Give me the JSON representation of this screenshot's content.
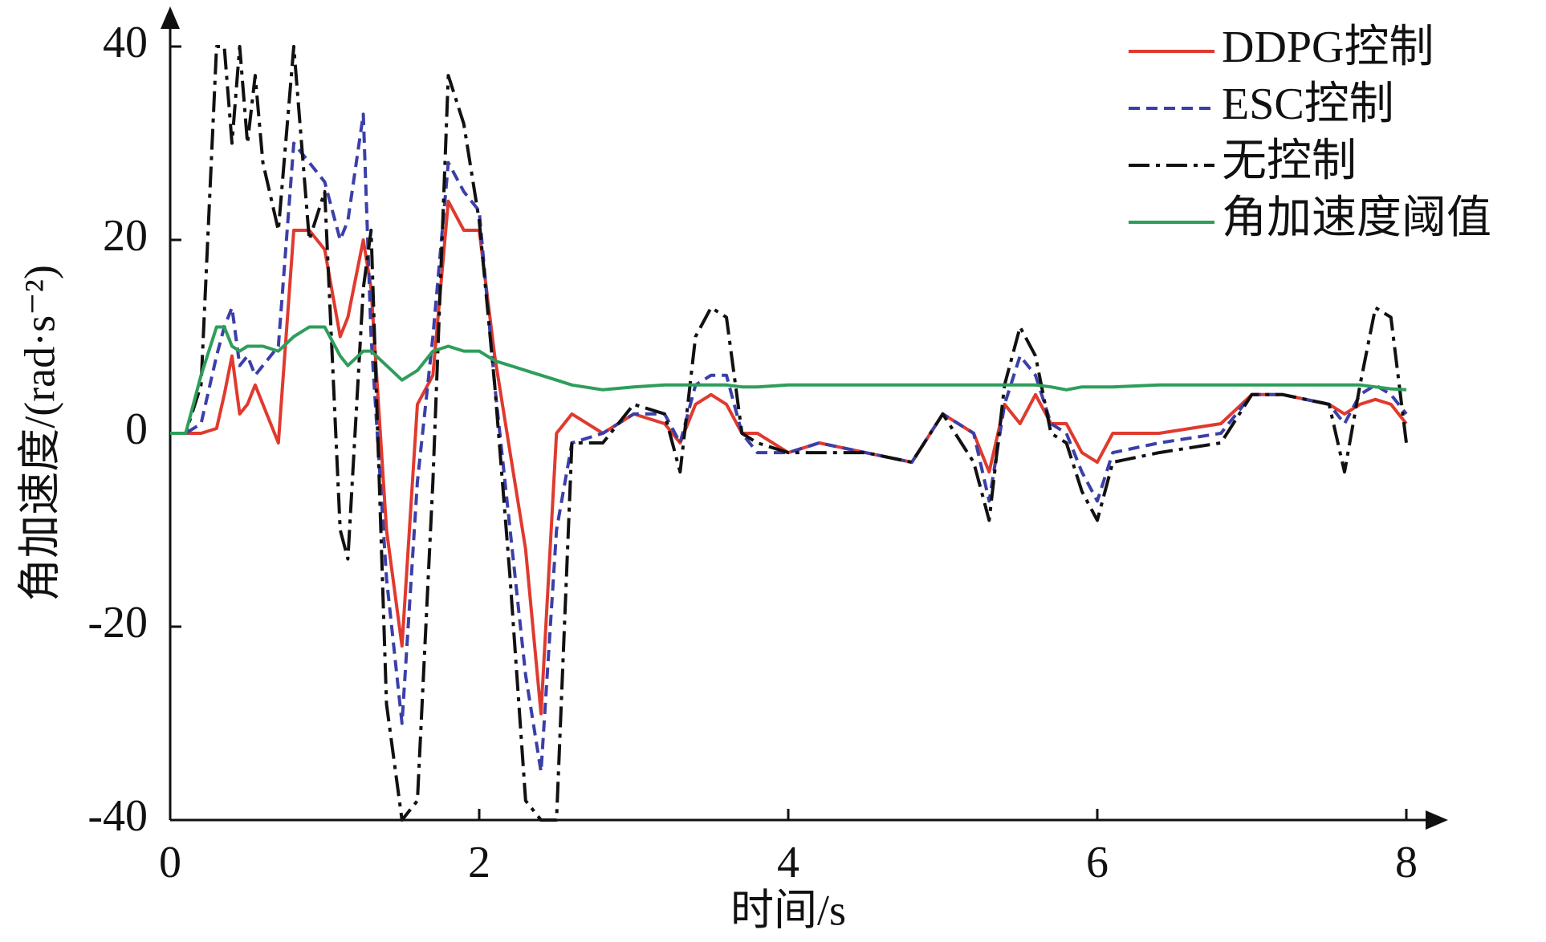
{
  "chart_data": {
    "type": "line",
    "x_label": "时间/s",
    "y_label": "角加速度/(rad·s⁻²)",
    "xlim": [
      0,
      8
    ],
    "xticks": [
      0,
      2,
      4,
      6,
      8
    ],
    "ylim": [
      -40,
      40
    ],
    "yticks": [
      -40,
      -20,
      0,
      20,
      40
    ],
    "legend": "upper right",
    "x": [
      0,
      0.1,
      0.2,
      0.3,
      0.35,
      0.4,
      0.45,
      0.5,
      0.55,
      0.6,
      0.7,
      0.8,
      0.9,
      1.0,
      1.1,
      1.15,
      1.25,
      1.3,
      1.4,
      1.5,
      1.6,
      1.7,
      1.8,
      1.9,
      2.0,
      2.1,
      2.2,
      2.3,
      2.4,
      2.5,
      2.6,
      2.8,
      3.0,
      3.2,
      3.3,
      3.4,
      3.5,
      3.6,
      3.7,
      3.8,
      4.0,
      4.2,
      4.5,
      4.8,
      5.0,
      5.2,
      5.3,
      5.4,
      5.5,
      5.6,
      5.7,
      5.8,
      5.9,
      6.0,
      6.1,
      6.4,
      6.8,
      7.0,
      7.2,
      7.5,
      7.6,
      7.7,
      7.8,
      7.9,
      8.0
    ],
    "series": [
      {
        "name": "DDPG控制",
        "color": "#e03a2e",
        "style": "solid",
        "values": [
          0,
          0,
          0,
          0.5,
          4,
          8,
          2,
          3,
          5,
          3,
          -1,
          21,
          21,
          19,
          10,
          12,
          20,
          15,
          -10,
          -22,
          3,
          6,
          24,
          21,
          21,
          8,
          -2,
          -12,
          -29,
          0,
          2,
          0,
          2,
          1,
          -1,
          3,
          4,
          3,
          0,
          0,
          -2,
          -1,
          -2,
          -3,
          2,
          0,
          -4,
          3,
          1,
          4,
          1,
          1,
          -2,
          -3,
          0,
          0,
          1,
          4,
          4,
          3,
          2,
          3,
          3.5,
          3,
          1
        ]
      },
      {
        "name": "ESC控制",
        "color": "#3b3fa8",
        "style": "dashed",
        "values": [
          0,
          0,
          1,
          8,
          11,
          13,
          7,
          8,
          6,
          7,
          9,
          30,
          28,
          26,
          20,
          22,
          33,
          10,
          -15,
          -30,
          -5,
          10,
          28,
          25,
          23,
          5,
          -10,
          -25,
          -35,
          -10,
          -1,
          0,
          2,
          2,
          -1,
          5,
          6,
          6,
          0,
          -2,
          -2,
          -1,
          -2,
          -3,
          2,
          0,
          -7,
          3,
          8,
          6,
          1,
          0,
          -4,
          -7,
          -2,
          -1,
          0,
          4,
          4,
          3,
          1,
          4,
          5,
          4,
          2
        ]
      },
      {
        "name": "无控制",
        "color": "#111111",
        "style": "dashdot",
        "values": [
          0,
          0,
          5,
          40,
          40,
          30,
          40,
          30,
          37,
          28,
          21,
          40,
          20,
          25,
          -10,
          -13,
          15,
          21,
          -28,
          -40,
          -38,
          -5,
          37,
          32,
          22,
          5,
          -15,
          -38,
          -40,
          -40,
          -1,
          -1,
          3,
          2,
          -4,
          10,
          13,
          12,
          0,
          -1,
          -2,
          -2,
          -2,
          -3,
          2,
          -3,
          -9,
          5,
          11,
          8,
          0,
          -1,
          -6,
          -9,
          -3,
          -2,
          -1,
          4,
          4,
          3,
          -4,
          5,
          13,
          12,
          -1
        ]
      },
      {
        "name": "角加速度阈值",
        "color": "#2e9e5b",
        "style": "solid",
        "values": [
          0,
          0,
          6,
          11,
          11,
          9,
          8.5,
          9,
          9,
          9,
          8.5,
          10,
          11,
          11,
          8,
          7,
          8.5,
          8.5,
          7,
          5.5,
          6.5,
          8.5,
          9,
          8.5,
          8.5,
          7.5,
          7,
          6.5,
          6,
          5.5,
          5,
          4.5,
          4.8,
          5,
          5,
          5,
          5,
          5,
          4.8,
          4.8,
          5,
          5,
          5,
          5,
          5,
          5,
          5,
          5,
          5,
          5,
          4.8,
          4.5,
          4.8,
          4.8,
          4.8,
          5,
          5,
          5,
          5,
          5,
          5,
          5,
          4.8,
          4.6,
          4.5
        ]
      }
    ]
  }
}
